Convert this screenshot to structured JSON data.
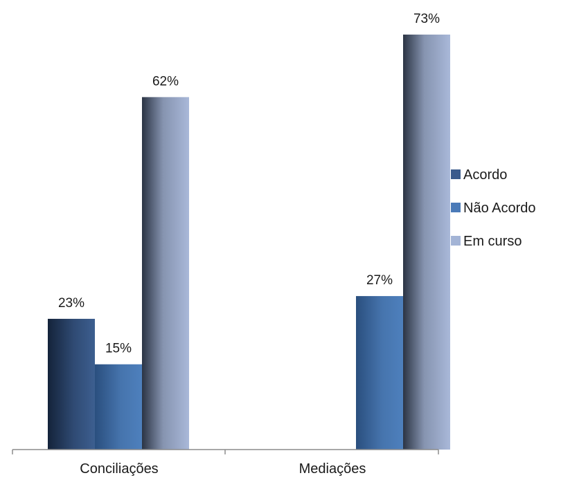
{
  "chart_data": {
    "type": "bar",
    "categories": [
      "Conciliações",
      "Mediações"
    ],
    "series": [
      {
        "name": "Acordo",
        "values": [
          23,
          0
        ],
        "value_labels": [
          "23%",
          null
        ],
        "color": "#3a5a8c"
      },
      {
        "name": "Não Acordo",
        "values": [
          15,
          27
        ],
        "value_labels": [
          "15%",
          "27%"
        ],
        "color": "#4a7ab8"
      },
      {
        "name": "Em curso",
        "values": [
          62,
          73
        ],
        "value_labels": [
          "62%",
          "73%"
        ],
        "color": "#a3b4d6"
      }
    ],
    "unit": "%",
    "ylim": [
      0,
      73
    ],
    "legend_position": "right",
    "grid": false
  }
}
